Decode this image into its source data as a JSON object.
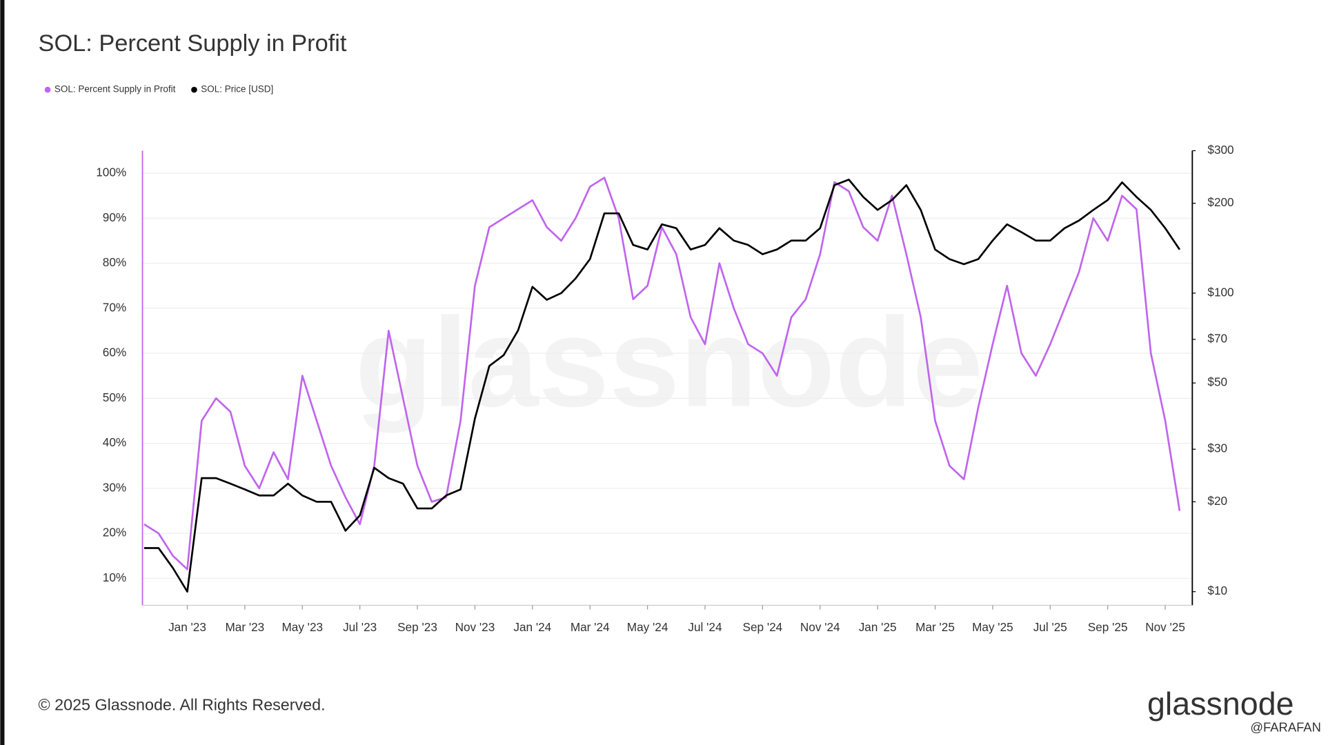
{
  "chart_data": {
    "type": "line",
    "title": "SOL: Percent Supply in Profit",
    "footer": "© 2025 Glassnode. All Rights Reserved.",
    "watermark": "glassnode",
    "logo": "glassnode",
    "credit": "@FARAFAN",
    "categories": [
      null,
      null,
      null,
      "Jan '23",
      null,
      null,
      null,
      "Mar '23",
      null,
      null,
      null,
      "May '23",
      null,
      null,
      null,
      "Jul '23",
      null,
      null,
      null,
      "Sep '23",
      null,
      null,
      null,
      "Nov '23",
      null,
      null,
      null,
      "Jan '24",
      null,
      null,
      null,
      "Mar '24",
      null,
      null,
      null,
      "May '24",
      null,
      null,
      null,
      "Jul '24",
      null,
      null,
      null,
      "Sep '24",
      null,
      null,
      null,
      "Nov '24",
      null,
      null,
      null,
      "Jan '25",
      null,
      null,
      null,
      "Mar '25",
      null,
      null,
      null,
      "May '25",
      null,
      null,
      null,
      "Jul '25",
      null,
      null,
      null,
      "Sep '25",
      null,
      null,
      null,
      "Nov '25",
      null
    ],
    "series": [
      {
        "name": "SOL: Percent Supply in Profit",
        "color": "#c065ee",
        "axis": "y",
        "values": [
          22,
          20,
          15,
          12,
          45,
          50,
          47,
          35,
          30,
          38,
          32,
          55,
          45,
          35,
          28,
          22,
          35,
          65,
          50,
          35,
          27,
          28,
          45,
          75,
          88,
          90,
          92,
          94,
          88,
          85,
          90,
          97,
          99,
          90,
          72,
          75,
          88,
          82,
          68,
          62,
          80,
          70,
          62,
          60,
          55,
          68,
          72,
          82,
          98,
          96,
          88,
          85,
          95,
          82,
          68,
          45,
          35,
          32,
          48,
          62,
          75,
          60,
          55,
          62,
          70,
          78,
          90,
          85,
          95,
          92,
          60,
          45,
          25
        ]
      },
      {
        "name": "SOL: Price [USD]",
        "color": "#000000",
        "axis": "y2",
        "values": [
          14,
          14,
          12,
          10,
          24,
          24,
          23,
          22,
          21,
          21,
          23,
          21,
          20,
          20,
          16,
          18,
          26,
          24,
          23,
          19,
          19,
          21,
          22,
          38,
          57,
          62,
          75,
          105,
          95,
          100,
          112,
          130,
          185,
          185,
          145,
          140,
          170,
          165,
          140,
          145,
          165,
          150,
          145,
          135,
          140,
          150,
          150,
          165,
          230,
          240,
          210,
          190,
          205,
          230,
          190,
          140,
          130,
          125,
          130,
          150,
          170,
          160,
          150,
          150,
          165,
          175,
          190,
          205,
          235,
          210,
          190,
          165,
          140
        ]
      }
    ],
    "ylim": [
      4,
      105
    ],
    "yticks": [
      {
        "value": 10,
        "label": "10%"
      },
      {
        "value": 20,
        "label": "20%"
      },
      {
        "value": 30,
        "label": "30%"
      },
      {
        "value": 40,
        "label": "40%"
      },
      {
        "value": 50,
        "label": "50%"
      },
      {
        "value": 60,
        "label": "60%"
      },
      {
        "value": 70,
        "label": "70%"
      },
      {
        "value": 80,
        "label": "80%"
      },
      {
        "value": 90,
        "label": "90%"
      },
      {
        "value": 100,
        "label": "100%"
      }
    ],
    "y2lim": [
      9,
      300
    ],
    "y2scale": "log",
    "y2ticks": [
      {
        "value": 10,
        "label": "$10"
      },
      {
        "value": 20,
        "label": "$20"
      },
      {
        "value": 30,
        "label": "$30"
      },
      {
        "value": 50,
        "label": "$50"
      },
      {
        "value": 70,
        "label": "$70"
      },
      {
        "value": 100,
        "label": "$100"
      },
      {
        "value": 200,
        "label": "$200"
      },
      {
        "value": 300,
        "label": "$300"
      }
    ],
    "grid": true,
    "legend": "top-left"
  }
}
